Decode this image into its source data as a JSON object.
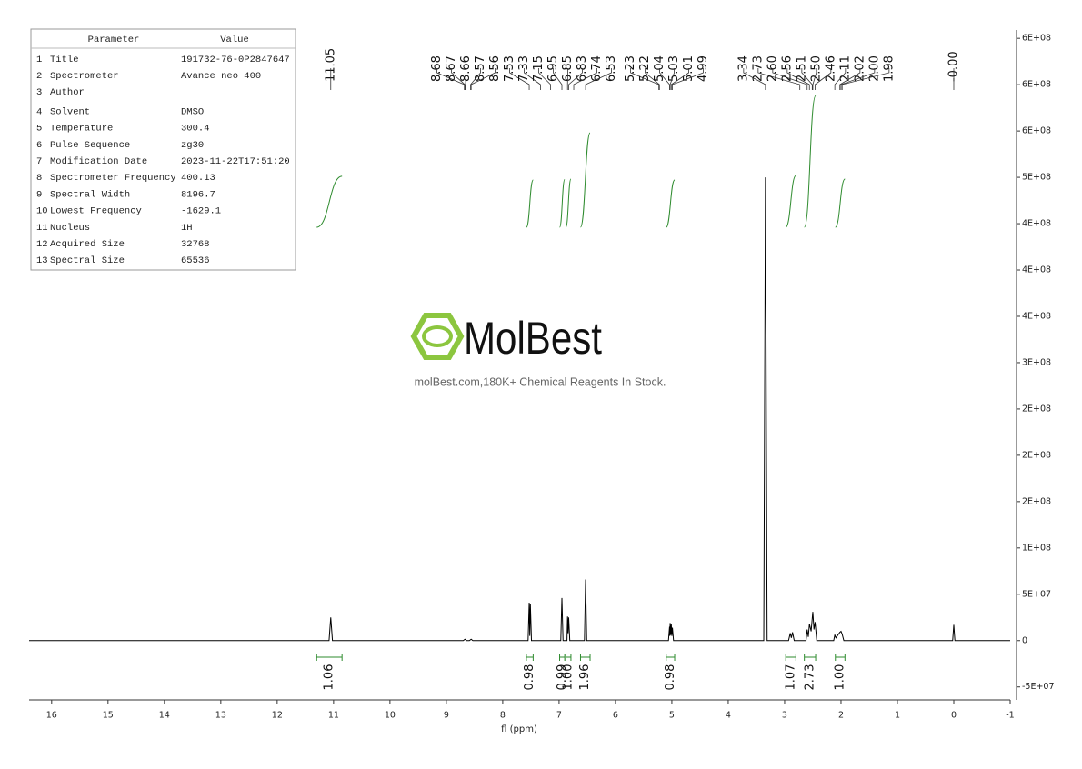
{
  "chart_data": {
    "type": "line",
    "x_label": "fl (ppm)",
    "x": [
      16.4,
      11.08,
      11.05,
      11.02,
      8.7,
      8.67,
      8.64,
      8.59,
      8.56,
      8.53,
      7.55,
      7.53,
      7.52,
      7.51,
      7.49,
      6.97,
      6.95,
      6.93,
      6.86,
      6.85,
      6.84,
      6.83,
      6.81,
      6.55,
      6.53,
      6.51,
      5.06,
      5.04,
      5.035,
      5.03,
      5.02,
      5.01,
      5.0,
      4.99,
      4.97,
      3.37,
      3.34,
      3.31,
      2.93,
      2.9,
      2.88,
      2.86,
      2.83,
      2.62,
      2.6,
      2.58,
      2.56,
      2.53,
      2.5,
      2.48,
      2.46,
      2.43,
      2.13,
      2.11,
      2.09,
      2.02,
      2.0,
      1.98,
      1.95,
      0.02,
      0.0,
      -0.02,
      -1
    ],
    "values": [
      0,
      0,
      25000000,
      0,
      0,
      1500000,
      0,
      0,
      1500000,
      0,
      0,
      41000000,
      5000000,
      40000000,
      0,
      0,
      46000000,
      0,
      0,
      26000000,
      8000000,
      25000000,
      0,
      0,
      66000000,
      0,
      0,
      15000000,
      5000000,
      19000000,
      6000000,
      18000000,
      5000000,
      14000000,
      0,
      0,
      500000000,
      0,
      0,
      8000000,
      3000000,
      9000000,
      0,
      0,
      12000000,
      4000000,
      18000000,
      10000000,
      31000000,
      12000000,
      20000000,
      0,
      0,
      6000000,
      3000000,
      9000000,
      10000000,
      7000000,
      0,
      0,
      17000000,
      0,
      0
    ],
    "color": "#000000",
    "xlim": [
      16.4,
      -1
    ],
    "xticks": [
      16,
      15,
      14,
      13,
      12,
      11,
      10,
      9,
      8,
      7,
      6,
      5,
      4,
      3,
      2,
      1,
      0,
      -1
    ],
    "ylim": [
      -64000000,
      659000000
    ],
    "yticks": [
      {
        "value": -50000000,
        "label": "-5E+07"
      },
      0,
      {
        "value": 50000000,
        "label": "5E+07"
      },
      {
        "value": 100000000,
        "label": "1E+08"
      },
      {
        "value": 150000000,
        "label": "2E+08"
      },
      {
        "value": 200000000,
        "label": "2E+08"
      },
      {
        "value": 250000000,
        "label": "2E+08"
      },
      {
        "value": 300000000,
        "label": "3E+08"
      },
      {
        "value": 350000000,
        "label": "4E+08"
      },
      {
        "value": 400000000,
        "label": "4E+08"
      },
      {
        "value": 450000000,
        "label": "4E+08"
      },
      {
        "value": 500000000,
        "label": "5E+08"
      },
      {
        "value": 550000000,
        "label": "6E+08"
      },
      {
        "value": 600000000,
        "label": "6E+08"
      },
      {
        "value": 650000000,
        "label": "6E+08"
      }
    ],
    "y_axis_side": "right",
    "peak_picks": {
      "values": [
        11.05,
        8.68,
        8.67,
        8.66,
        8.57,
        8.56,
        7.53,
        7.33,
        7.15,
        6.95,
        6.85,
        6.83,
        6.74,
        6.53,
        5.23,
        5.22,
        5.04,
        5.03,
        5.01,
        4.99,
        3.34,
        2.73,
        2.6,
        2.56,
        2.51,
        2.5,
        2.46,
        2.11,
        2.02,
        2,
        1.98,
        0
      ],
      "value_labels": [
        "11.05",
        "8.68",
        "8.67",
        "8.66",
        "8.57",
        "8.56",
        "7.53",
        "7.33",
        "7.15",
        "6.95",
        "6.85",
        "6.83",
        "6.74",
        "6.53",
        "5.23",
        "5.22",
        "5.04",
        "5.03",
        "5.01",
        "4.99",
        "3.34",
        "2.73",
        "2.60",
        "2.56",
        "2.51",
        "2.50",
        "2.46",
        "2.11",
        "2.02",
        "2.00",
        "1.98",
        "-0.00"
      ]
    },
    "integrals": {
      "color": "#2e8b2e",
      "values": [
        1.06,
        0.98,
        0.99,
        1,
        1.96,
        0.98,
        1.07,
        2.73,
        1
      ],
      "value_labels": [
        "1.06",
        "0.98",
        "0.99",
        "1.00",
        "1.96",
        "0.98",
        "1.07",
        "2.73",
        "1.00"
      ],
      "ranges": [
        [
          11.3,
          10.85
        ],
        [
          7.58,
          7.46
        ],
        [
          6.99,
          6.9
        ],
        [
          6.88,
          6.79
        ],
        [
          6.62,
          6.45
        ],
        [
          5.1,
          4.95
        ],
        [
          2.98,
          2.8
        ],
        [
          2.65,
          2.45
        ],
        [
          2.1,
          1.93
        ]
      ]
    }
  },
  "parameters": {
    "header": [
      "Parameter",
      "Value"
    ],
    "rows": [
      [
        "1",
        "Title",
        "191732-76-0P2847647"
      ],
      [
        "2",
        "Spectrometer",
        "Avance neo 400"
      ],
      [
        "3",
        "Author"
      ],
      [
        "4",
        "Solvent",
        "DMSO"
      ],
      [
        "5",
        "Temperature",
        "300.4"
      ],
      [
        "6",
        "Pulse Sequence",
        "zg30"
      ],
      [
        "7",
        "Modification Date",
        "2023-11-22T17:51:20"
      ],
      [
        "8",
        "Spectrometer Frequency",
        "400.13"
      ],
      [
        "9",
        "Spectral Width",
        "8196.7"
      ],
      [
        "10",
        "Lowest Frequency",
        "-1629.1"
      ],
      [
        "11",
        "Nucleus",
        "1H"
      ],
      [
        "12",
        "Acquired Size",
        "32768"
      ],
      [
        "13",
        "Spectral Size",
        "65536"
      ]
    ]
  },
  "watermark": {
    "brand": "MolBest",
    "tagline": "molBest.com,180K+ Chemical Reagents In Stock."
  }
}
